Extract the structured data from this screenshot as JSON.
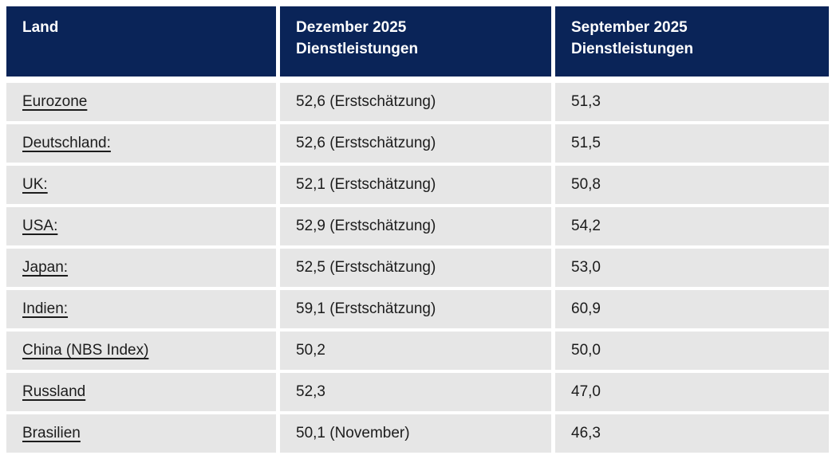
{
  "table": {
    "columns": [
      {
        "label": "Land"
      },
      {
        "label": "Dezember 2025\nDienstleistungen"
      },
      {
        "label": "September 2025\nDienstleistungen"
      }
    ],
    "rows": [
      {
        "land": "Eurozone",
        "dec": "52,6 (Erstschätzung)",
        "sep": "51,3"
      },
      {
        "land": "Deutschland:",
        "dec": "52,6 (Erstschätzung)",
        "sep": "51,5"
      },
      {
        "land": "UK:",
        "dec": "52,1 (Erstschätzung)",
        "sep": "50,8"
      },
      {
        "land": "USA:",
        "dec": "52,9 (Erstschätzung)",
        "sep": "54,2"
      },
      {
        "land": "Japan:",
        "dec": "52,5 (Erstschätzung)",
        "sep": "53,0"
      },
      {
        "land": "Indien:",
        "dec": "59,1 (Erstschätzung)",
        "sep": "60,9"
      },
      {
        "land": "China (NBS Index)",
        "dec": "50,2",
        "sep": "50,0"
      },
      {
        "land": "Russland",
        "dec": "52,3",
        "sep": "47,0"
      },
      {
        "land": "Brasilien",
        "dec": "50,1 (November)",
        "sep": "46,3"
      }
    ]
  },
  "colors": {
    "header_bg": "#0a2458",
    "header_text": "#ffffff",
    "row_bg": "#e6e6e6",
    "body_text": "#1c1c1c"
  }
}
